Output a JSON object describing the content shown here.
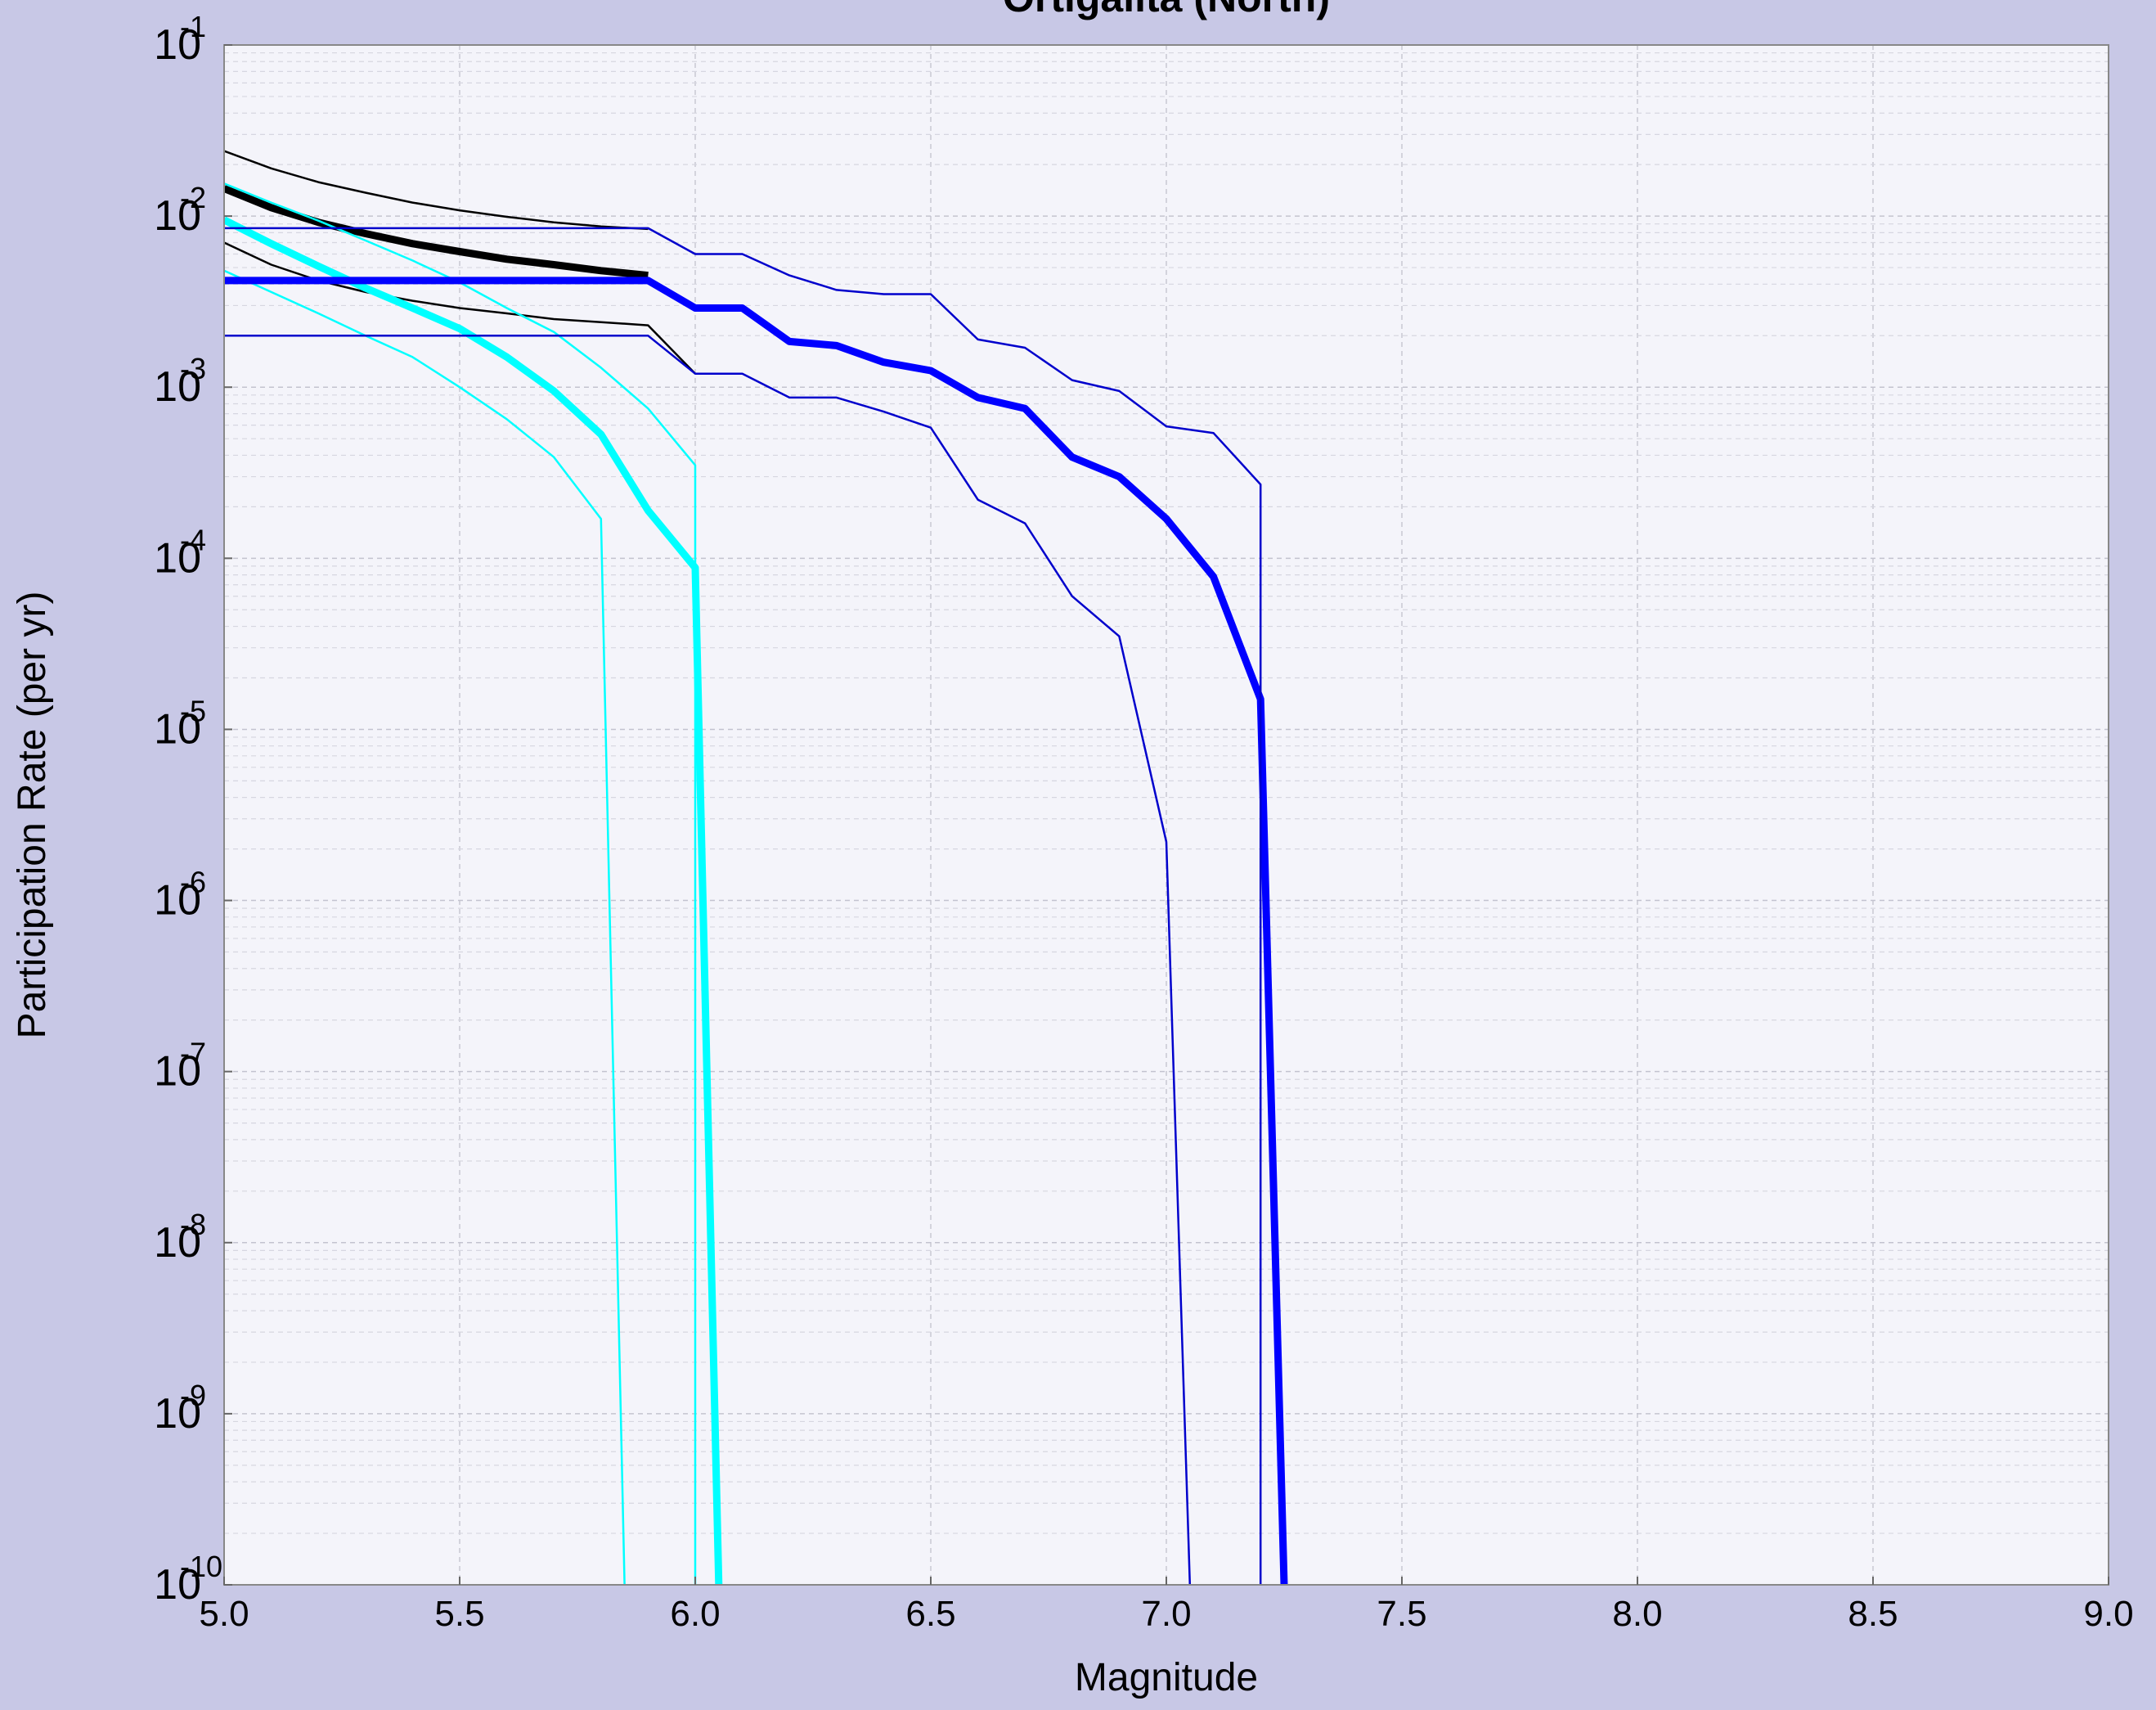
{
  "chart_data": {
    "type": "line",
    "title": "Ortigalita (North)",
    "xlabel": "Magnitude",
    "ylabel": "Participation Rate (per yr)",
    "xlim": [
      5.0,
      9.0
    ],
    "ylim": [
      1e-10,
      0.1
    ],
    "yscale": "log",
    "grid": true,
    "x_ticks": [
      {
        "value": 5.0,
        "label": "5.0"
      },
      {
        "value": 5.5,
        "label": "5.5"
      },
      {
        "value": 6.0,
        "label": "6.0"
      },
      {
        "value": 6.5,
        "label": "6.5"
      },
      {
        "value": 7.0,
        "label": "7.0"
      },
      {
        "value": 7.5,
        "label": "7.5"
      },
      {
        "value": 8.0,
        "label": "8.0"
      },
      {
        "value": 8.5,
        "label": "8.5"
      },
      {
        "value": 9.0,
        "label": "9.0"
      }
    ],
    "y_ticks": [
      {
        "value": 0.1,
        "base": "10",
        "exp": "-1"
      },
      {
        "value": 0.01,
        "base": "10",
        "exp": "-2"
      },
      {
        "value": 0.001,
        "base": "10",
        "exp": "-3"
      },
      {
        "value": 0.0001,
        "base": "10",
        "exp": "-4"
      },
      {
        "value": 1e-05,
        "base": "10",
        "exp": "-5"
      },
      {
        "value": 1e-06,
        "base": "10",
        "exp": "-6"
      },
      {
        "value": 1e-07,
        "base": "10",
        "exp": "-7"
      },
      {
        "value": 1e-08,
        "base": "10",
        "exp": "-8"
      },
      {
        "value": 1e-09,
        "base": "10",
        "exp": "-9"
      },
      {
        "value": 1e-10,
        "base": "10",
        "exp": "-10"
      }
    ],
    "series": [
      {
        "color": "#000000",
        "width": 9,
        "x": [
          5.0,
          5.1,
          5.2,
          5.3,
          5.4,
          5.5,
          5.6,
          5.7,
          5.8,
          5.9
        ],
        "y": [
          0.0145,
          0.0112,
          0.0092,
          0.0079,
          0.0069,
          0.0062,
          0.0056,
          0.0052,
          0.0048,
          0.0045
        ]
      },
      {
        "color": "#000000",
        "width": 2.5,
        "x": [
          5.0,
          5.1,
          5.2,
          5.3,
          5.4,
          5.5,
          5.6,
          5.7,
          5.8,
          5.9
        ],
        "y": [
          0.024,
          0.019,
          0.0158,
          0.0137,
          0.012,
          0.0108,
          0.0099,
          0.0092,
          0.0087,
          0.0084
        ]
      },
      {
        "color": "#000000",
        "width": 2.5,
        "x": [
          5.0,
          5.1,
          5.2,
          5.3,
          5.4,
          5.5,
          5.6,
          5.7,
          5.8,
          5.9,
          6.0
        ],
        "y": [
          0.007,
          0.0052,
          0.0042,
          0.0036,
          0.0032,
          0.0029,
          0.0027,
          0.0025,
          0.0024,
          0.0023,
          0.0012
        ]
      },
      {
        "color": "#00ffff",
        "width": 9,
        "x": [
          5.0,
          5.1,
          5.2,
          5.3,
          5.4,
          5.5,
          5.6,
          5.7,
          5.8,
          5.9,
          6.0,
          6.05
        ],
        "y": [
          0.0095,
          0.0069,
          0.0051,
          0.0038,
          0.0029,
          0.0022,
          0.0015,
          0.00095,
          0.00053,
          0.00019,
          8.8e-05,
          1e-10
        ]
      },
      {
        "color": "#00ffff",
        "width": 2.5,
        "x": [
          5.0,
          5.1,
          5.2,
          5.3,
          5.4,
          5.5,
          5.6,
          5.7,
          5.8,
          5.9,
          6.0,
          6.0
        ],
        "y": [
          0.0155,
          0.012,
          0.0094,
          0.0072,
          0.0055,
          0.0041,
          0.0029,
          0.0021,
          0.0013,
          0.00075,
          0.00035,
          1e-10
        ]
      },
      {
        "color": "#00ffff",
        "width": 2.5,
        "x": [
          5.0,
          5.1,
          5.2,
          5.3,
          5.4,
          5.5,
          5.6,
          5.7,
          5.8,
          5.85
        ],
        "y": [
          0.0048,
          0.0036,
          0.0027,
          0.002,
          0.0015,
          0.001,
          0.00065,
          0.00039,
          0.00017,
          1e-10
        ]
      },
      {
        "color": "#0000ff",
        "width": 9,
        "x": [
          5.0,
          5.9,
          6.0,
          6.1,
          6.2,
          6.3,
          6.4,
          6.5,
          6.6,
          6.7,
          6.8,
          6.9,
          7.0,
          7.1,
          7.2,
          7.25
        ],
        "y": [
          0.0042,
          0.0042,
          0.0029,
          0.0029,
          0.00185,
          0.00175,
          0.0014,
          0.00125,
          0.00087,
          0.00075,
          0.00039,
          0.0003,
          0.00017,
          7.8e-05,
          1.5e-05,
          1e-10
        ]
      },
      {
        "color": "#0000cc",
        "width": 2.5,
        "x": [
          5.0,
          5.9,
          6.0,
          6.1,
          6.2,
          6.3,
          6.4,
          6.5,
          6.6,
          6.7,
          6.8,
          6.9,
          7.0,
          7.1,
          7.2,
          7.2
        ],
        "y": [
          0.0085,
          0.0085,
          0.006,
          0.006,
          0.0045,
          0.0037,
          0.0035,
          0.0035,
          0.0019,
          0.0017,
          0.0011,
          0.00095,
          0.00059,
          0.00054,
          0.00027,
          1e-10
        ]
      },
      {
        "color": "#0000cc",
        "width": 2.5,
        "x": [
          5.0,
          5.9,
          6.0,
          6.1,
          6.2,
          6.3,
          6.4,
          6.5,
          6.6,
          6.7,
          6.8,
          6.9,
          7.0,
          7.05
        ],
        "y": [
          0.002,
          0.002,
          0.0012,
          0.0012,
          0.00087,
          0.00087,
          0.00072,
          0.00058,
          0.00022,
          0.00016,
          6e-05,
          3.5e-05,
          2.2e-06,
          1e-10
        ]
      }
    ]
  }
}
